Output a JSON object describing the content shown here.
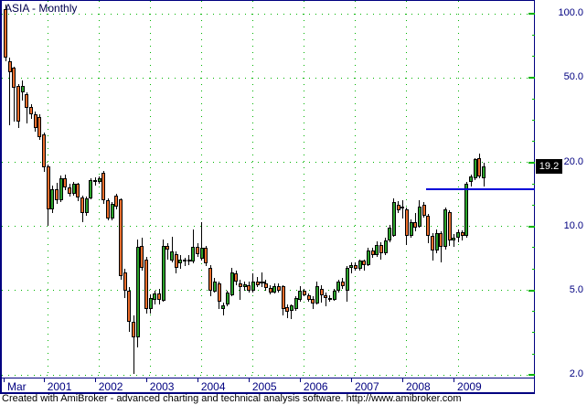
{
  "title": "ASIA - Monthly",
  "status_bar": "Created with AmiBroker - advanced charting and technical analysis software. http://www.amibroker.com",
  "price_label": "19.2",
  "colors": {
    "background": "#ffffff",
    "axis": "#000080",
    "grid": "#00b400",
    "candle_up": "#2ba32b",
    "candle_down": "#ed6e2d",
    "candle_outline": "#000000",
    "wick": "#000000",
    "doji": "#000000",
    "trendline": "#0000d8",
    "price_tag_bg": "#000000",
    "price_tag_text": "#ffffff",
    "title_text": "#00004d",
    "status_text": "#000000"
  },
  "chart_data": {
    "type": "candlestick",
    "title": "ASIA - Monthly",
    "interval": "monthly",
    "scale": "logarithmic",
    "y_axis": {
      "labels": [
        "100.0",
        "50.0",
        "20.0",
        "10.0",
        "5.0",
        "2.0"
      ],
      "values": [
        100,
        50,
        20,
        10,
        5,
        2
      ],
      "range": [
        2,
        110
      ],
      "minor_ticks_per_decade": 10,
      "grid": "dotted-green",
      "position": "right"
    },
    "x_axis": {
      "first_label": "Mar",
      "year_labels": [
        "2001",
        "2002",
        "2003",
        "2004",
        "2005",
        "2006",
        "2007",
        "2008",
        "2009"
      ],
      "year_start_indices": [
        10,
        22,
        34,
        46,
        58,
        70,
        82,
        94,
        106
      ],
      "grid": "dotted-green"
    },
    "series_start": "2000-03",
    "last_close": 19.2,
    "trendline": {
      "type": "horizontal",
      "price": 15,
      "start_index": 99,
      "extends_to_axis": true
    },
    "ohlc": [
      [
        105,
        110,
        60,
        62
      ],
      [
        60,
        62,
        30,
        53
      ],
      [
        55.5,
        56.5,
        31,
        45
      ],
      [
        45.6,
        46.5,
        29,
        31
      ],
      [
        42.6,
        48.5,
        39,
        45.6
      ],
      [
        42,
        42.5,
        30.5,
        36.1
      ],
      [
        36.5,
        37.5,
        32,
        33.7
      ],
      [
        33.7,
        34.5,
        28,
        29
      ],
      [
        32.8,
        33.5,
        25.5,
        26.3
      ],
      [
        27,
        27.5,
        18,
        19
      ],
      [
        19.2,
        19.5,
        10.1,
        12
      ],
      [
        12,
        15.5,
        11.5,
        15
      ],
      [
        15,
        16,
        12.8,
        13.3
      ],
      [
        13.3,
        17.3,
        13,
        16.9
      ],
      [
        16.9,
        17.5,
        14.8,
        15.3
      ],
      [
        15.3,
        15.8,
        13.8,
        14.2
      ],
      [
        14.2,
        16.2,
        14,
        15.8
      ],
      [
        15.8,
        16,
        13.2,
        13.7
      ],
      [
        13.7,
        14,
        10.5,
        11.5
      ],
      [
        11.5,
        13.8,
        11.2,
        13.5
      ],
      [
        13.5,
        16.8,
        13.4,
        16.5
      ],
      [
        16.5,
        17,
        15.5,
        16.1
      ],
      [
        16.1,
        17.2,
        15.8,
        16.9
      ],
      [
        17.8,
        18.2,
        12.8,
        13.3
      ],
      [
        13.3,
        13.6,
        10.7,
        10.9
      ],
      [
        10.9,
        13,
        10.7,
        12.8
      ],
      [
        13.9,
        14.2,
        12,
        12.4
      ],
      [
        13.35,
        13.5,
        5.6,
        5.85
      ],
      [
        6.1,
        6.3,
        4.6,
        5
      ],
      [
        5,
        5.2,
        3.2,
        3.55
      ],
      [
        3.55,
        3.8,
        2.02,
        3
      ],
      [
        3,
        8.7,
        2.7,
        8
      ],
      [
        8.1,
        8.8,
        6.2,
        6.4
      ],
      [
        7,
        7.2,
        3.9,
        4.1
      ],
      [
        4.1,
        4.8,
        3.9,
        4.6
      ],
      [
        4.5,
        5,
        4.3,
        4.85
      ],
      [
        4.85,
        5.1,
        4.3,
        4.5
      ],
      [
        4.47,
        8.7,
        4.4,
        8.1
      ],
      [
        8.1,
        8.3,
        7,
        7.75
      ],
      [
        6.9,
        8.9,
        6.8,
        7.6
      ],
      [
        7.4,
        7.6,
        6,
        6.4
      ],
      [
        6.7,
        7.3,
        6.3,
        7
      ],
      [
        6.85,
        7.1,
        6.5,
        6.95
      ],
      [
        7,
        7.3,
        6.6,
        6.85
      ],
      [
        6.85,
        9.7,
        6.7,
        8
      ],
      [
        8,
        8.3,
        7.2,
        7.4
      ],
      [
        7.05,
        10.5,
        6.9,
        7.9
      ],
      [
        7.9,
        8.1,
        6.5,
        6.7
      ],
      [
        6.4,
        6.6,
        4.7,
        5
      ],
      [
        4.95,
        5.7,
        4.9,
        5.5
      ],
      [
        5.4,
        5.5,
        4.1,
        4.4
      ],
      [
        4.1,
        4.4,
        3.8,
        4.25
      ],
      [
        4.3,
        5,
        4.2,
        4.9
      ],
      [
        4.75,
        6.4,
        4.7,
        6.1
      ],
      [
        6,
        6.2,
        5.3,
        5.5
      ],
      [
        5.4,
        5.6,
        4.5,
        5.2
      ],
      [
        5.2,
        5.5,
        5,
        5.35
      ],
      [
        5.3,
        5.5,
        4.9,
        5
      ],
      [
        5,
        6,
        4.9,
        5.5
      ],
      [
        5.5,
        5.8,
        5.2,
        5.3
      ],
      [
        5.45,
        6.1,
        5.2,
        5.45
      ],
      [
        5.4,
        5.6,
        5,
        5.15
      ],
      [
        5.15,
        5.3,
        4.8,
        4.9
      ],
      [
        4.9,
        5.4,
        4.85,
        5.25
      ],
      [
        5.25,
        5.4,
        4.9,
        5
      ],
      [
        5.25,
        5.3,
        3.8,
        4.1
      ],
      [
        4.15,
        4.3,
        3.7,
        3.95
      ],
      [
        4,
        4.3,
        3.65,
        4.25
      ],
      [
        4.1,
        4.7,
        4,
        4.6
      ],
      [
        4.5,
        5.25,
        4.4,
        5
      ],
      [
        5,
        5.1,
        4.7,
        4.75
      ],
      [
        4.75,
        4.85,
        4.4,
        4.5
      ],
      [
        4.55,
        4.7,
        4.1,
        4.35
      ],
      [
        4.35,
        5.5,
        4.3,
        5.25
      ],
      [
        5.1,
        5.3,
        4.4,
        4.75
      ],
      [
        4.75,
        4.9,
        4.2,
        4.6
      ],
      [
        4.6,
        4.75,
        4.4,
        4.5
      ],
      [
        4.5,
        5.1,
        4.45,
        5
      ],
      [
        5,
        5.6,
        4.9,
        5.5
      ],
      [
        5.5,
        5.7,
        5.1,
        5.25
      ],
      [
        5,
        6.5,
        4.4,
        6.35
      ],
      [
        6.35,
        6.8,
        6,
        6.6
      ],
      [
        6.6,
        6.8,
        6.2,
        6.3
      ],
      [
        6.3,
        7,
        6.2,
        6.9
      ],
      [
        6.9,
        7,
        6.2,
        6.6
      ],
      [
        6.6,
        7.9,
        6.5,
        7.7
      ],
      [
        7.7,
        7.9,
        7.1,
        7.3
      ],
      [
        7.3,
        8.5,
        7.2,
        8.2
      ],
      [
        8.2,
        8.4,
        7,
        7.5
      ],
      [
        7.5,
        8.8,
        7.3,
        8.6
      ],
      [
        8.6,
        10.2,
        8.4,
        9.9
      ],
      [
        9,
        13.5,
        8.9,
        13
      ],
      [
        12.6,
        13.2,
        11.5,
        11.9
      ],
      [
        12.4,
        13.3,
        10.9,
        12.1
      ],
      [
        12,
        12.2,
        8.2,
        9
      ],
      [
        9,
        10.8,
        8.8,
        10.5
      ],
      [
        10.5,
        11.5,
        9.5,
        9.9
      ],
      [
        10,
        13.3,
        9.9,
        12.4
      ],
      [
        12.6,
        13,
        11,
        11.2
      ],
      [
        11.2,
        11.4,
        8.3,
        9
      ],
      [
        9,
        9.3,
        6.9,
        7.7
      ],
      [
        7.7,
        9.7,
        7.5,
        9.3
      ],
      [
        9.3,
        9.5,
        6.75,
        8
      ],
      [
        8,
        12.2,
        7.8,
        12
      ],
      [
        11.7,
        11.9,
        8.05,
        8.6
      ],
      [
        8.6,
        9.2,
        8,
        8.8
      ],
      [
        8.8,
        9.7,
        8.4,
        9.4
      ],
      [
        9.4,
        9.6,
        8.6,
        9
      ],
      [
        9,
        16.2,
        8.8,
        15.8
      ],
      [
        16.1,
        17.5,
        15.4,
        17.2
      ],
      [
        16.9,
        21,
        16.5,
        20.7
      ],
      [
        21,
        22,
        16.9,
        17.2
      ],
      [
        16.9,
        19.9,
        15.4,
        19.2
      ]
    ]
  }
}
